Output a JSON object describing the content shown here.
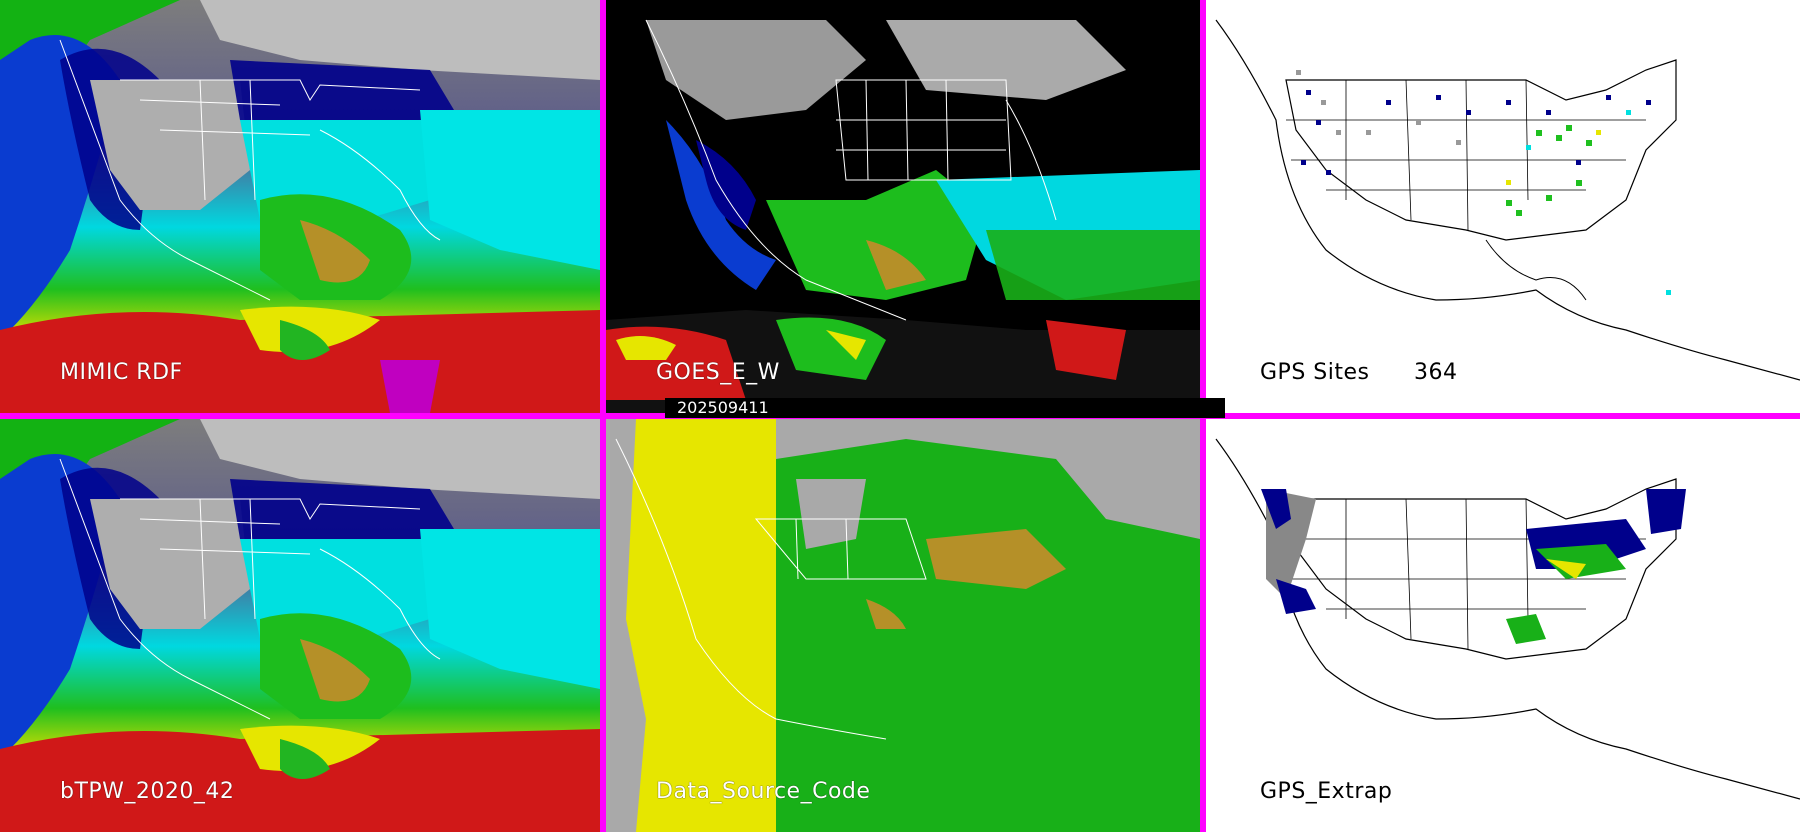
{
  "panels": {
    "p1": {
      "label": "MIMIC RDF"
    },
    "p2": {
      "label": "GOES_E_W"
    },
    "p3": {
      "label": "GPS Sites",
      "count": "364"
    },
    "p4": {
      "label": "bTPW_2020_42"
    },
    "p5": {
      "label": "Data_Source_Code"
    },
    "p6": {
      "label": "GPS_Extrap"
    }
  },
  "timestamp": "202509411",
  "colors": {
    "divider": "#ff00ff",
    "dry_low": "#00008b",
    "mid_blue": "#0033cc",
    "cyan": "#00e5e5",
    "green": "#22b522",
    "bright_green": "#3fdc3f",
    "yellow": "#e6e600",
    "olive": "#b08a2a",
    "red": "#d01818",
    "magenta": "#c000c0",
    "gray": "#aaaaaa",
    "land_outline": "#ffffff"
  }
}
